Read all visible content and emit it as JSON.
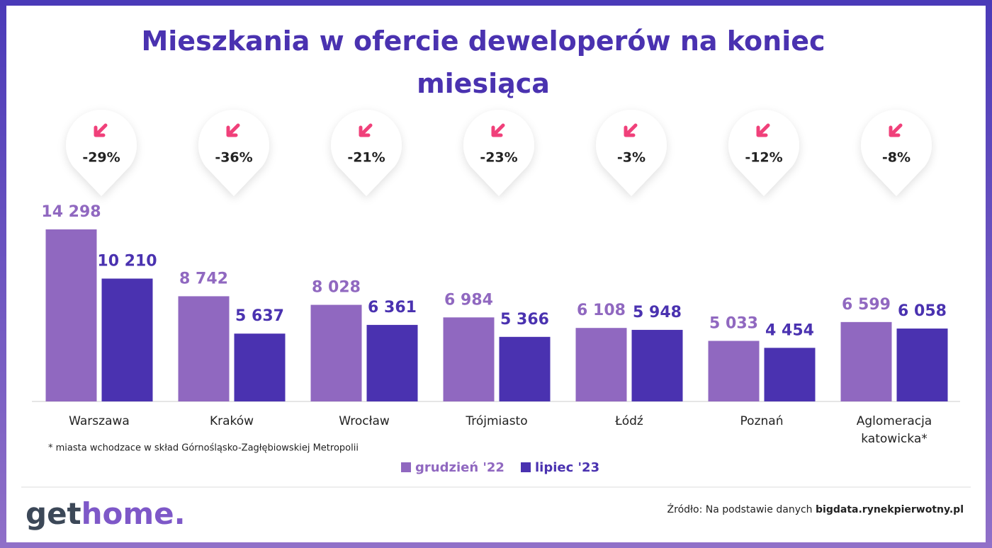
{
  "chart_data": {
    "type": "bar",
    "title": "Mieszkania w ofercie deweloperów na koniec miesiąca",
    "categories": [
      "Warszawa",
      "Kraków",
      "Wrocław",
      "Trójmiasto",
      "Łódź",
      "Poznań",
      "Aglomeracja katowicka*"
    ],
    "series": [
      {
        "name": "grudzień '22",
        "color": "#9068c0",
        "values": [
          14298,
          8742,
          8028,
          6984,
          6108,
          5033,
          6599
        ],
        "value_labels": [
          "14 298",
          "8 742",
          "8 028",
          "6 984",
          "6 108",
          "5 033",
          "6 599"
        ]
      },
      {
        "name": "lipiec '23",
        "color": "#4a32b0",
        "values": [
          10210,
          5637,
          6361,
          5366,
          5948,
          4454,
          6058
        ],
        "value_labels": [
          "10 210",
          "5 637",
          "6 361",
          "5 366",
          "5 948",
          "4 454",
          "6 058"
        ]
      }
    ],
    "annotations": [
      "-29%",
      "-36%",
      "-21%",
      "-23%",
      "-3%",
      "-12%",
      "-8%"
    ],
    "footnote": "* miasta wchodzace w skład Górnośląsko-Zagłębiowskiej Metropolii"
  },
  "footer": {
    "logo": [
      "get",
      "home."
    ],
    "source_prefix": "Źródło: Na podstawie danych",
    "source_link": "bigdata.rynekpierwotny.pl"
  }
}
